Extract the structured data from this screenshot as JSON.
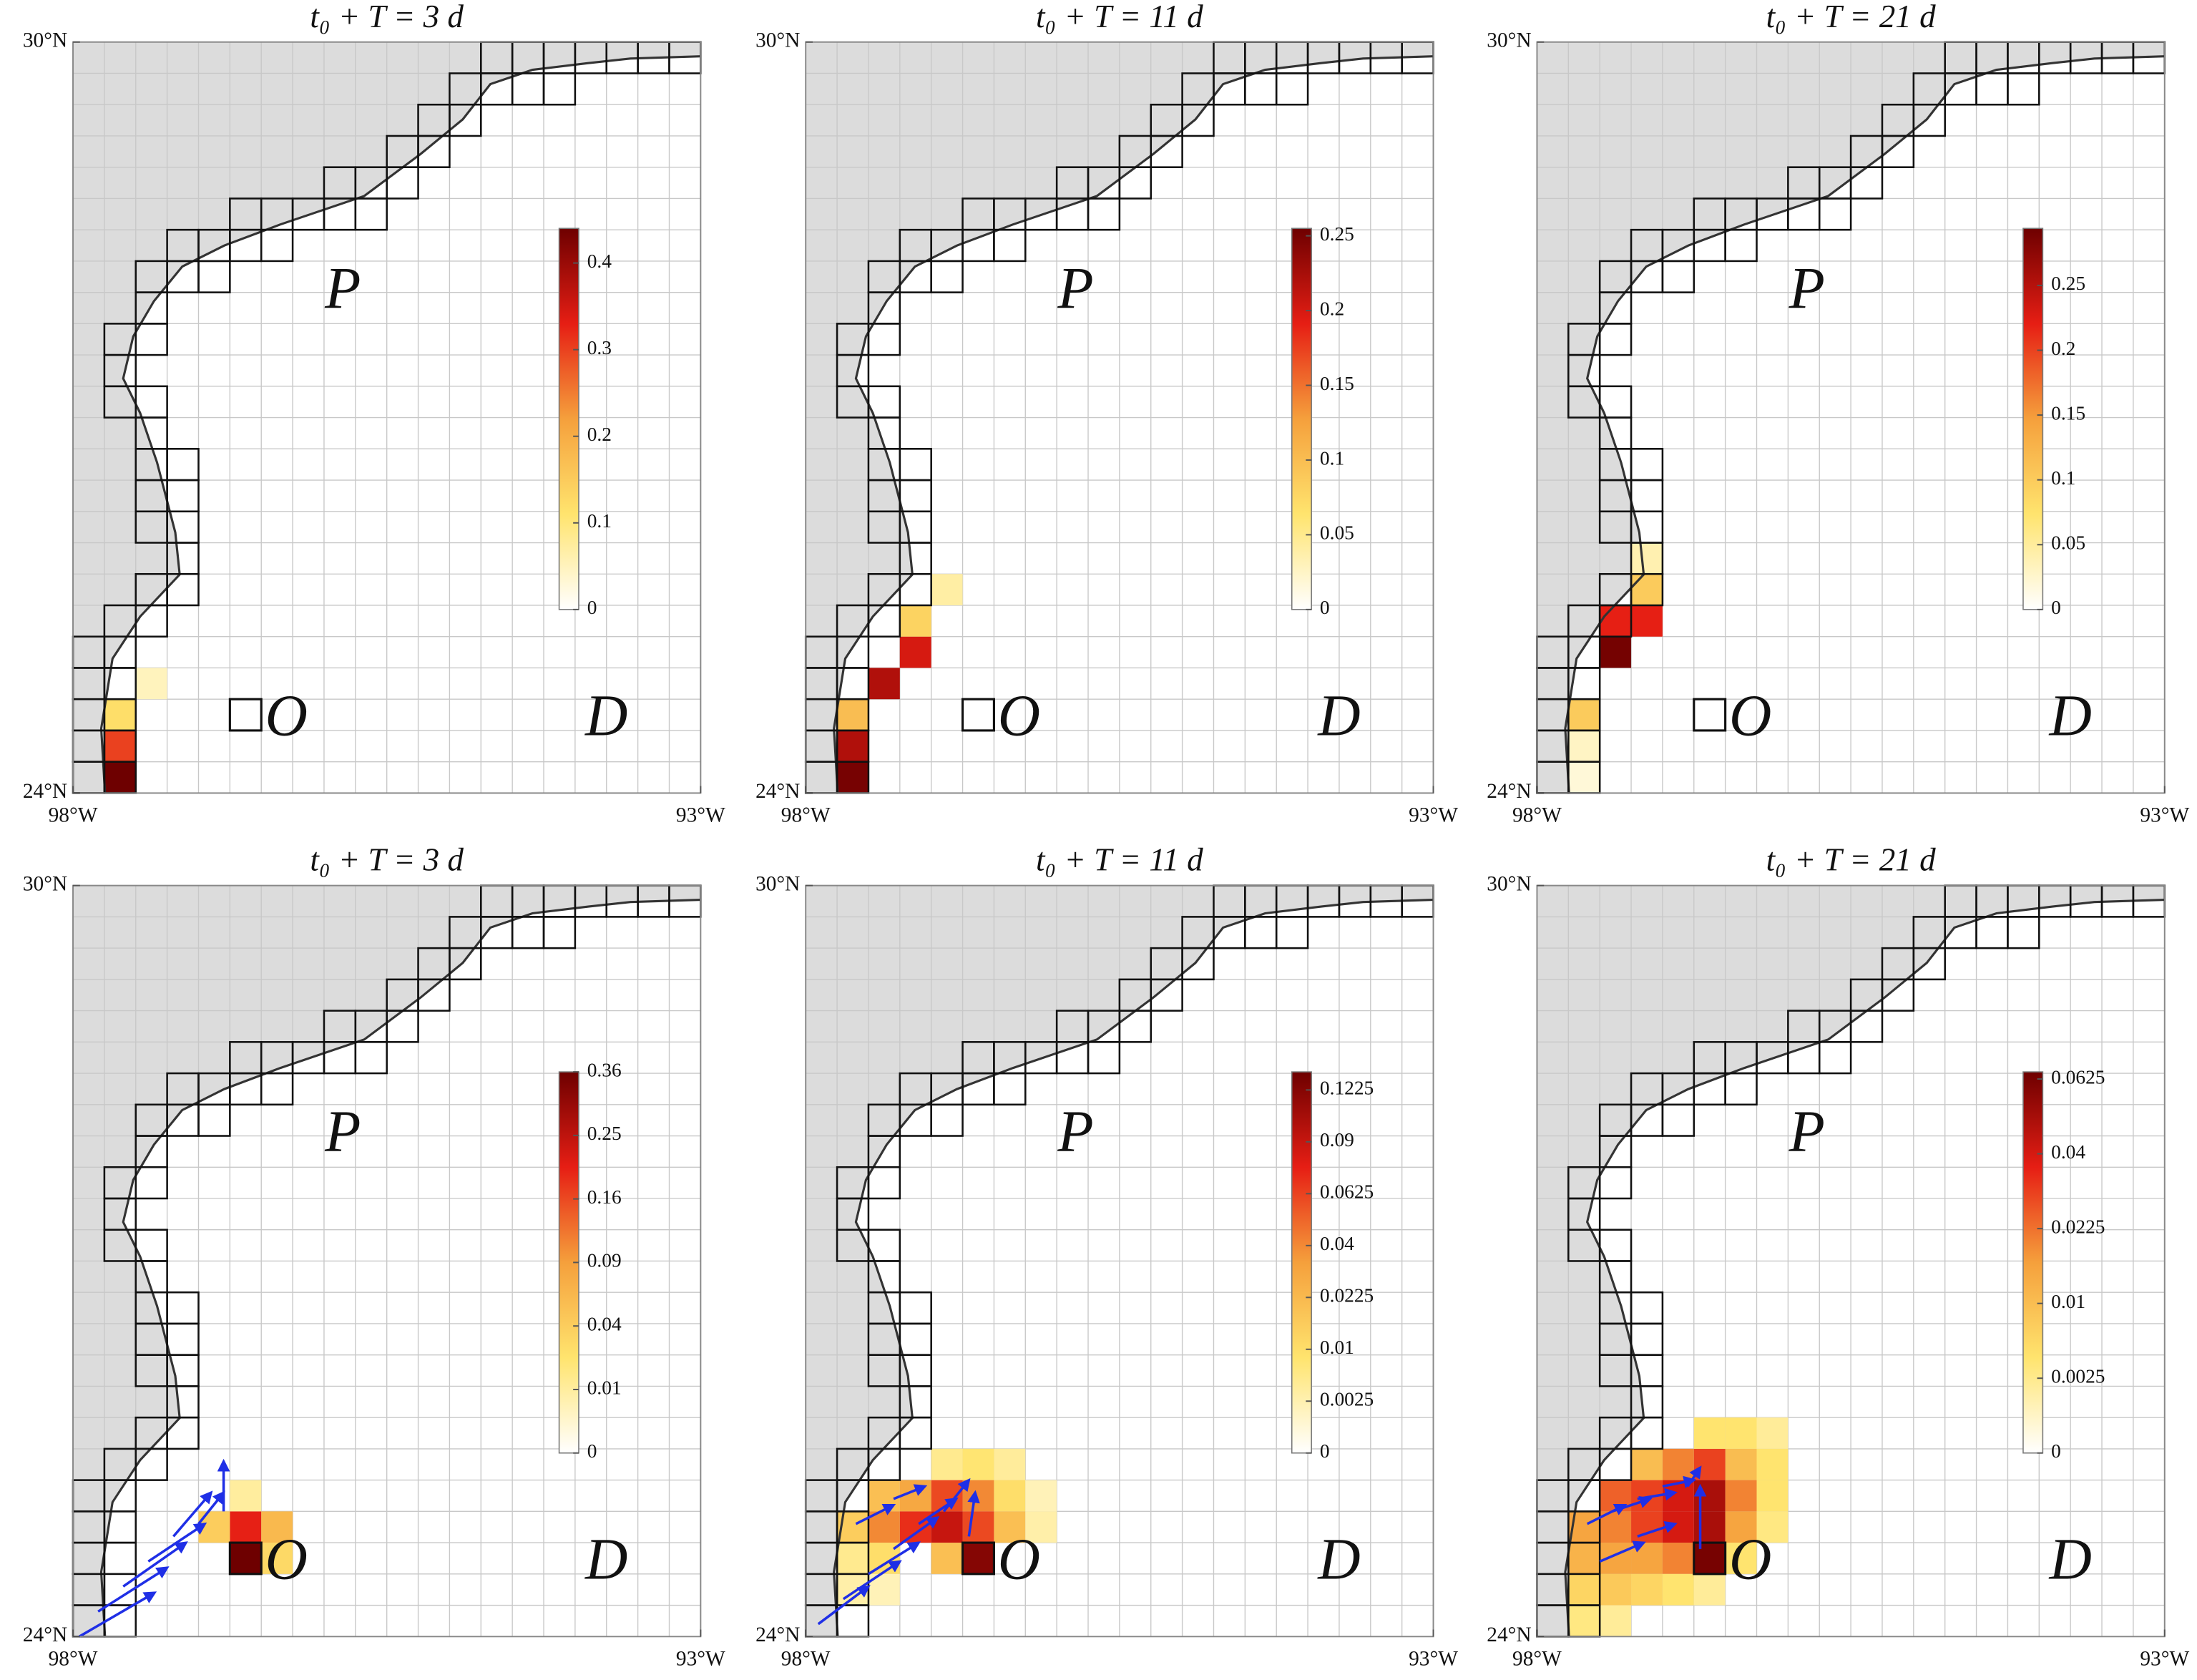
{
  "colormap": [
    "#ffffff",
    "#ffe46e",
    "#f5a03c",
    "#e61e14",
    "#6e0000"
  ],
  "land_color": "#dcdcdc",
  "vector_color": "#1f2fe6",
  "grid_color": "#c8c8c8",
  "chart_data": [
    {
      "type": "heatmap",
      "title": "t₀ + T = 3 d",
      "xlim": [
        -98,
        -93
      ],
      "ylim": [
        24,
        30
      ],
      "xticks": [
        {
          "value": -98,
          "label": "98°W"
        },
        {
          "value": -93,
          "label": "93°W"
        }
      ],
      "yticks": [
        {
          "value": 24,
          "label": "24°N"
        },
        {
          "value": 30,
          "label": "30°N"
        }
      ],
      "region_labels": [
        "P",
        "O",
        "D"
      ],
      "cells": {
        "x": [
          -97.75,
          -97.75,
          -97.75,
          -97.5
        ],
        "y": [
          24,
          24.25,
          24.5,
          24.75
        ],
        "values": [
          0.44,
          0.3,
          0.12,
          0.05
        ]
      },
      "colorbar": {
        "lim": [
          0,
          0.44
        ],
        "ticks": [
          0,
          0.1,
          0.2,
          0.3,
          0.4
        ],
        "scale": "linear"
      }
    },
    {
      "type": "heatmap",
      "title": "t₀ + T = 11 d",
      "xlim": [
        -98,
        -93
      ],
      "ylim": [
        24,
        30
      ],
      "xticks": [
        {
          "value": -98,
          "label": "98°W"
        },
        {
          "value": -93,
          "label": "93°W"
        }
      ],
      "yticks": [
        {
          "value": 24,
          "label": "24°N"
        },
        {
          "value": 30,
          "label": "30°N"
        }
      ],
      "region_labels": [
        "P",
        "O",
        "D"
      ],
      "cells": {
        "x": [
          -97.75,
          -97.75,
          -97.75,
          -97.5,
          -97.25,
          -97.25,
          -97
        ],
        "y": [
          24,
          24.25,
          24.5,
          24.75,
          25,
          25.25,
          25.5
        ],
        "values": [
          0.25,
          0.22,
          0.1,
          0.22,
          0.2,
          0.08,
          0.04
        ]
      },
      "colorbar": {
        "lim": [
          0,
          0.255
        ],
        "ticks": [
          0,
          0.05,
          0.1,
          0.15,
          0.2,
          0.25
        ],
        "scale": "linear"
      }
    },
    {
      "type": "heatmap",
      "title": "t₀ + T = 21 d",
      "xlim": [
        -98,
        -93
      ],
      "ylim": [
        24,
        30
      ],
      "xticks": [
        {
          "value": -98,
          "label": "98°W"
        },
        {
          "value": -93,
          "label": "93°W"
        }
      ],
      "yticks": [
        {
          "value": 24,
          "label": "24°N"
        },
        {
          "value": 30,
          "label": "30°N"
        }
      ],
      "region_labels": [
        "P",
        "O",
        "D"
      ],
      "cells": {
        "x": [
          -97.5,
          -97.5,
          -97.25,
          -97.25,
          -97.25,
          -97.75,
          -97.75,
          -97.75
        ],
        "y": [
          25,
          25.25,
          25.25,
          25.5,
          25.75,
          24.5,
          24.25,
          24
        ],
        "values": [
          0.29,
          0.22,
          0.22,
          0.1,
          0.04,
          0.1,
          0.03,
          0.02
        ]
      },
      "colorbar": {
        "lim": [
          0,
          0.294
        ],
        "ticks": [
          0,
          0.05,
          0.1,
          0.15,
          0.2,
          0.25
        ],
        "scale": "linear"
      }
    },
    {
      "type": "heatmap",
      "title": "t₀ + T = 3 d",
      "xlim": [
        -98,
        -93
      ],
      "ylim": [
        24,
        30
      ],
      "xticks": [
        {
          "value": -98,
          "label": "98°W"
        },
        {
          "value": -93,
          "label": "93°W"
        }
      ],
      "yticks": [
        {
          "value": 24,
          "label": "24°N"
        },
        {
          "value": 30,
          "label": "30°N"
        }
      ],
      "region_labels": [
        "P",
        "O",
        "D"
      ],
      "cells": {
        "x": [
          -96.75,
          -96.75,
          -96.5,
          -96.5,
          -97,
          -96.75
        ],
        "y": [
          24.5,
          24.75,
          24.75,
          24.5,
          24.75,
          25
        ],
        "values": [
          0.36,
          0.2,
          0.06,
          0.03,
          0.04,
          0.01
        ]
      },
      "colorbar": {
        "lim": [
          0,
          0.36
        ],
        "ticks": [
          0,
          0.01,
          0.04,
          0.09,
          0.16,
          0.25,
          0.36
        ],
        "scale": "sqrt"
      },
      "vectors": {
        "x": [
          -97.95,
          -97.8,
          -97.6,
          -97.4,
          -97.2,
          -97,
          -96.8
        ],
        "y": [
          24,
          24.2,
          24.4,
          24.6,
          24.8,
          24.9,
          25
        ],
        "u": [
          0.6,
          0.55,
          0.5,
          0.45,
          0.3,
          0.2,
          0
        ],
        "v": [
          0.35,
          0.35,
          0.35,
          0.3,
          0.35,
          0.25,
          0.4
        ]
      }
    },
    {
      "type": "heatmap",
      "title": "t₀ + T = 11 d",
      "xlim": [
        -98,
        -93
      ],
      "ylim": [
        24,
        30
      ],
      "xticks": [
        {
          "value": -98,
          "label": "98°W"
        },
        {
          "value": -93,
          "label": "93°W"
        }
      ],
      "yticks": [
        {
          "value": 24,
          "label": "24°N"
        },
        {
          "value": 30,
          "label": "30°N"
        }
      ],
      "region_labels": [
        "P",
        "O",
        "D"
      ],
      "cells": {
        "x": [
          -96.75,
          -97,
          -97.25,
          -97,
          -96.75,
          -96.75,
          -97.5,
          -97.25,
          -97.5,
          -96.5,
          -96.5,
          -97.75,
          -97.5,
          -97.75,
          -97,
          -96.5,
          -96.75,
          -97,
          -97.75,
          -97.5,
          -96.25,
          -96.25
        ],
        "y": [
          24.5,
          24.75,
          24.75,
          25,
          24.75,
          25,
          24.75,
          25,
          25,
          24.75,
          25,
          24.75,
          24.5,
          24.5,
          24.5,
          25.25,
          25.25,
          25.25,
          24.25,
          24.25,
          25,
          24.75
        ],
        "values": [
          0.1225,
          0.09,
          0.07,
          0.06,
          0.06,
          0.04,
          0.04,
          0.03,
          0.02,
          0.02,
          0.01,
          0.015,
          0.01,
          0.005,
          0.02,
          0.004,
          0.008,
          0.005,
          0.003,
          0.002,
          0.002,
          0.003
        ]
      },
      "colorbar": {
        "lim": [
          0,
          0.135
        ],
        "ticks": [
          0,
          0.0025,
          0.01,
          0.0225,
          0.04,
          0.0625,
          0.09,
          0.1225
        ],
        "scale": "sqrt"
      },
      "vectors": {
        "x": [
          -97.9,
          -97.7,
          -97.5,
          -97.3,
          -97.1,
          -96.9,
          -96.7,
          -97.6,
          -97.3
        ],
        "y": [
          24.1,
          24.3,
          24.5,
          24.7,
          24.9,
          25,
          24.8,
          24.9,
          25.1
        ],
        "u": [
          0.4,
          0.45,
          0.4,
          0.35,
          0.3,
          0.2,
          0.05,
          0.3,
          0.25
        ],
        "v": [
          0.3,
          0.3,
          0.25,
          0.25,
          0.2,
          0.25,
          0.35,
          0.15,
          0.1
        ]
      }
    },
    {
      "type": "heatmap",
      "title": "t₀ + T = 21 d",
      "xlim": [
        -98,
        -93
      ],
      "ylim": [
        24,
        30
      ],
      "xticks": [
        {
          "value": -98,
          "label": "98°W"
        },
        {
          "value": -93,
          "label": "93°W"
        }
      ],
      "yticks": [
        {
          "value": 24,
          "label": "24°N"
        },
        {
          "value": 30,
          "label": "30°N"
        }
      ],
      "region_labels": [
        "P",
        "O",
        "D"
      ],
      "cells": {
        "x": [
          -96.75,
          -96.75,
          -96.75,
          -97,
          -97,
          -97.25,
          -97.25,
          -97.5,
          -97.5,
          -97.75,
          -97.75,
          -97.5,
          -97.25,
          -97,
          -97.5,
          -97.25,
          -97.75,
          -97.5,
          -97.75,
          -96.5,
          -96.5,
          -96.5,
          -96.75,
          -97,
          -97.25,
          -96.25,
          -96.25,
          -96.25,
          -96.5,
          -96.75,
          -97,
          -96.5,
          -96.25,
          -96.75
        ],
        "y": [
          24.5,
          24.75,
          25,
          24.75,
          25,
          25,
          24.75,
          25,
          24.75,
          24.75,
          24.5,
          24.5,
          24.5,
          24.5,
          24.25,
          24.25,
          24.25,
          24,
          24,
          25,
          24.75,
          25.25,
          25.25,
          25.25,
          25.25,
          25,
          24.75,
          25.5,
          25.5,
          25.5,
          24.25,
          24.5,
          25.25,
          24.25
        ],
        "values": [
          0.0625,
          0.05,
          0.05,
          0.04,
          0.04,
          0.03,
          0.03,
          0.025,
          0.02,
          0.015,
          0.012,
          0.015,
          0.015,
          0.02,
          0.008,
          0.006,
          0.006,
          0.002,
          0.003,
          0.02,
          0.015,
          0.01,
          0.03,
          0.02,
          0.01,
          0.004,
          0.003,
          0.002,
          0.004,
          0.004,
          0.004,
          0.004,
          0.004,
          0.002
        ]
      },
      "colorbar": {
        "lim": [
          0,
          0.0649
        ],
        "ticks": [
          0,
          0.0025,
          0.01,
          0.0225,
          0.04,
          0.0625
        ],
        "scale": "sqrt"
      },
      "vectors": {
        "x": [
          -97.6,
          -97.4,
          -97.2,
          -97,
          -96.8,
          -96.7,
          -97.5,
          -97.2
        ],
        "y": [
          24.9,
          25,
          25.1,
          25.2,
          25.2,
          24.7,
          24.6,
          24.8
        ],
        "u": [
          0.3,
          0.3,
          0.3,
          0.25,
          0.1,
          0,
          0.35,
          0.3
        ],
        "v": [
          0.15,
          0.1,
          0.05,
          0.05,
          0.15,
          0.5,
          0.15,
          0.1
        ]
      }
    }
  ]
}
